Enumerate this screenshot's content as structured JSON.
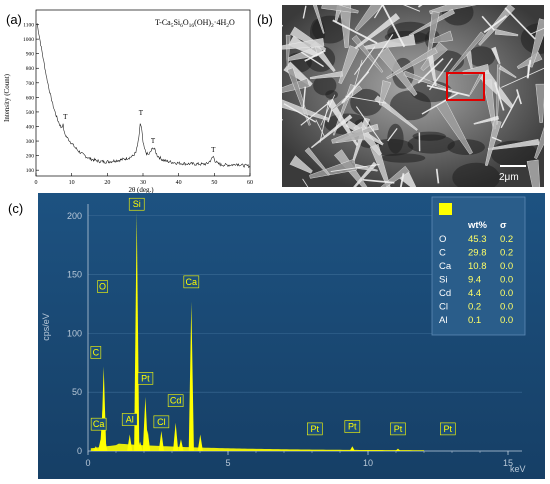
{
  "panels": {
    "a": "(a)",
    "b": "(b)",
    "c": "(c)"
  },
  "chart_data": [
    {
      "type": "line",
      "panel": "(a)",
      "title": "T-Ca5Si6O16(OH)2·4H2O",
      "title_parts": {
        "prefix": "T-Ca",
        "sub1": "5",
        "si": "Si",
        "sub2": "6",
        "o": "O",
        "sub3": "16",
        "oh": "(OH)",
        "sub4": "2",
        "tail": "·4H",
        "sub5": "2",
        "end": "O"
      },
      "xlabel": "2θ (deg.)",
      "ylabel": "Intensity (Count)",
      "xlim": [
        0,
        60
      ],
      "ylim": [
        60,
        1200
      ],
      "xticks": [
        "0",
        "10",
        "20",
        "30",
        "40",
        "50",
        "60"
      ],
      "yticks": [
        "100",
        "200",
        "300",
        "400",
        "500",
        "600",
        "700",
        "800",
        "900",
        "1000",
        "1100"
      ],
      "series": [
        {
          "x": [
            0.3,
            1,
            2,
            3,
            4,
            5,
            6,
            7,
            7.6,
            8,
            9,
            10,
            11,
            12,
            13,
            14,
            15,
            16,
            17,
            18,
            19,
            20,
            21,
            22,
            23,
            24,
            25,
            26,
            27,
            28,
            28.8,
            29.2,
            29.6,
            30,
            30.4,
            31,
            31.5,
            32,
            32.8,
            33.3,
            34,
            35,
            36,
            38,
            40,
            42,
            44,
            46,
            48,
            49.2,
            49.7,
            50.2,
            51,
            52,
            54,
            55.5,
            56,
            58,
            60
          ],
          "y": [
            1110,
            1010,
            870,
            735,
            620,
            525,
            450,
            395,
            410,
            350,
            315,
            285,
            255,
            230,
            210,
            195,
            180,
            172,
            165,
            160,
            158,
            158,
            160,
            165,
            168,
            172,
            178,
            185,
            195,
            220,
            310,
            420,
            385,
            290,
            245,
            215,
            205,
            220,
            255,
            240,
            200,
            180,
            165,
            155,
            148,
            145,
            143,
            141,
            143,
            175,
            195,
            165,
            145,
            137,
            135,
            138,
            145,
            132,
            128
          ]
        }
      ],
      "annotations": [
        {
          "label": "T",
          "x": 8.2,
          "y": 450
        },
        {
          "label": "T",
          "x": 29.4,
          "y": 480
        },
        {
          "label": "T",
          "x": 32.8,
          "y": 285
        },
        {
          "label": "T",
          "x": 49.7,
          "y": 225
        }
      ]
    },
    {
      "type": "bar",
      "panel": "(c)",
      "xlabel": "keV",
      "ylabel": "cps/eV",
      "xlim": [
        0,
        15.5
      ],
      "ylim": [
        0,
        210
      ],
      "xticks": [
        "0",
        "5",
        "10",
        "15"
      ],
      "yticks": [
        "0",
        "50",
        "100",
        "150",
        "200"
      ],
      "peaks": [
        {
          "x": 0.28,
          "y": 4
        },
        {
          "x": 0.45,
          "y": 10
        },
        {
          "x": 0.52,
          "y": 36
        },
        {
          "x": 0.28,
          "y": 3
        },
        {
          "x": 0.56,
          "y": 72
        },
        {
          "x": 0.6,
          "y": 12
        },
        {
          "x": 1.49,
          "y": 14
        },
        {
          "x": 1.74,
          "y": 203
        },
        {
          "x": 1.86,
          "y": 8
        },
        {
          "x": 2.05,
          "y": 46
        },
        {
          "x": 2.13,
          "y": 18
        },
        {
          "x": 2.62,
          "y": 17
        },
        {
          "x": 3.13,
          "y": 24
        },
        {
          "x": 3.32,
          "y": 10
        },
        {
          "x": 3.69,
          "y": 127
        },
        {
          "x": 4.01,
          "y": 14
        },
        {
          "x": 9.44,
          "y": 4
        },
        {
          "x": 11.07,
          "y": 2
        }
      ],
      "element_labels": [
        {
          "label": "O",
          "x": 0.52,
          "y": 133
        },
        {
          "label": "Si",
          "x": 1.74,
          "y": 203
        },
        {
          "label": "Ca",
          "x": 3.69,
          "y": 137
        },
        {
          "label": "C",
          "x": 0.28,
          "y": 77
        },
        {
          "label": "Pt",
          "x": 2.05,
          "y": 55
        },
        {
          "label": "Cd",
          "x": 3.13,
          "y": 36
        },
        {
          "label": "Ca",
          "x": 0.38,
          "y": 16
        },
        {
          "label": "Al",
          "x": 1.49,
          "y": 20
        },
        {
          "label": "Cl",
          "x": 2.62,
          "y": 18
        },
        {
          "label": "Pt",
          "x": 8.1,
          "y": 12
        },
        {
          "label": "Pt",
          "x": 9.44,
          "y": 14
        },
        {
          "label": "Pt",
          "x": 11.07,
          "y": 12
        },
        {
          "label": "Pt",
          "x": 12.85,
          "y": 12
        }
      ],
      "table": {
        "headers": [
          "",
          "wt%",
          "σ"
        ],
        "rows": [
          [
            "O",
            "45.3",
            "0.2"
          ],
          [
            "C",
            "29.8",
            "0.2"
          ],
          [
            "Ca",
            "10.8",
            "0.0"
          ],
          [
            "Si",
            "9.4",
            "0.0"
          ],
          [
            "Cd",
            "4.4",
            "0.0"
          ],
          [
            "Cl",
            "0.2",
            "0.0"
          ],
          [
            "Al",
            "0.1",
            "0.0"
          ]
        ]
      }
    }
  ],
  "sem": {
    "scale_label": "2μm"
  },
  "colors": {
    "eds_bg": "#1c4f7d",
    "eds_grid": "#3d6c96",
    "eds_spectrum": "#ffff00",
    "sem_highlight": "#e00000"
  }
}
